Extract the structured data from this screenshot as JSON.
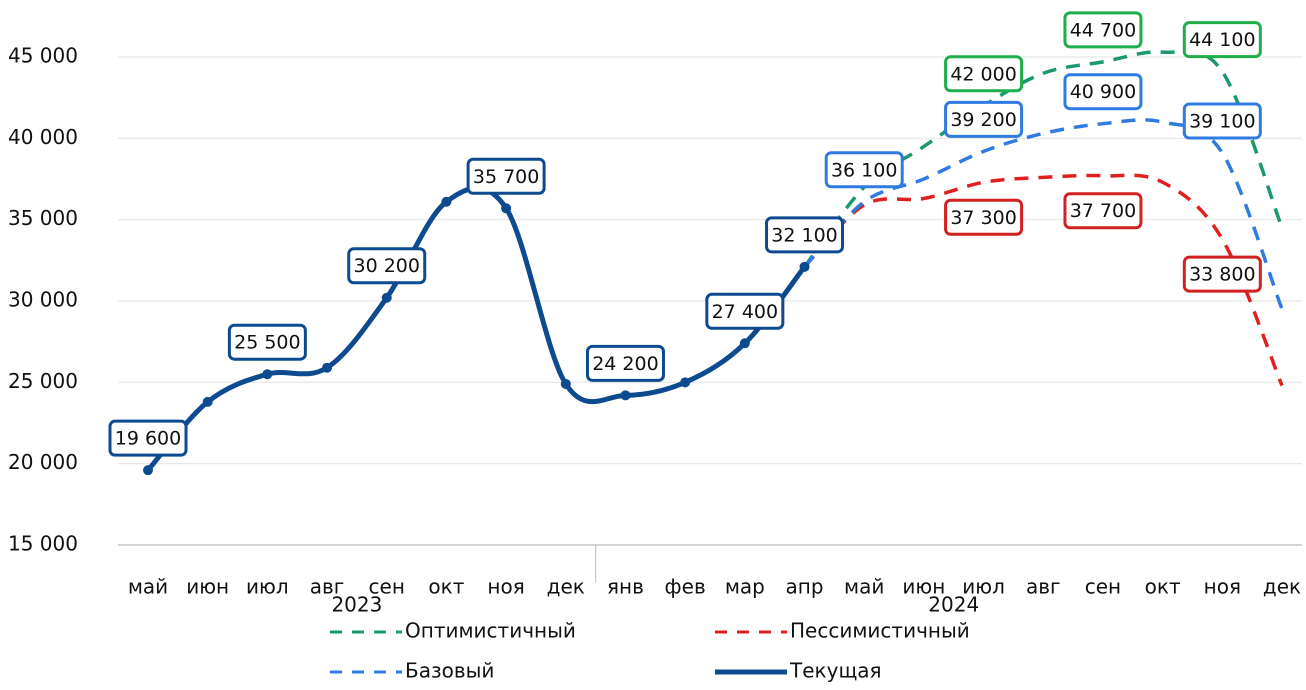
{
  "chart_data": {
    "type": "line",
    "categories": [
      "май",
      "июн",
      "июл",
      "авг",
      "сен",
      "окт",
      "ноя",
      "дек",
      "янв",
      "фев",
      "мар",
      "апр",
      "май",
      "июн",
      "июл",
      "авг",
      "сен",
      "окт",
      "ноя",
      "дек"
    ],
    "groups": [
      {
        "label": "2023",
        "span": 8
      },
      {
        "label": "2024",
        "span": 12
      }
    ],
    "ylim": [
      15000,
      45000
    ],
    "yticks": [
      {
        "value": 15000,
        "label": "15 000"
      },
      {
        "value": 20000,
        "label": "20 000"
      },
      {
        "value": 25000,
        "label": "25 000"
      },
      {
        "value": 30000,
        "label": "30 000"
      },
      {
        "value": 35000,
        "label": "35 000"
      },
      {
        "value": 40000,
        "label": "40 000"
      },
      {
        "value": 45000,
        "label": "45 000"
      }
    ],
    "grid": true,
    "series": [
      {
        "name": "Оптимистичный",
        "color": "#1a9a6c",
        "label_color": "#1fae4a",
        "dashed": true,
        "label_side": "above",
        "values": [
          null,
          null,
          null,
          null,
          null,
          null,
          null,
          null,
          null,
          null,
          null,
          32100,
          37000,
          39500,
          42000,
          44000,
          44700,
          45300,
          44100,
          34500
        ],
        "value_labels": [
          null,
          null,
          null,
          null,
          null,
          null,
          null,
          null,
          null,
          null,
          null,
          null,
          null,
          null,
          "42 000",
          null,
          "44 700",
          null,
          "44 100",
          null
        ]
      },
      {
        "name": "Пессимистичный",
        "color": "#e02020",
        "label_color": "#d32020",
        "dashed": true,
        "label_side": "below",
        "values": [
          null,
          null,
          null,
          null,
          null,
          null,
          null,
          null,
          null,
          null,
          null,
          32100,
          35900,
          36300,
          37300,
          37600,
          37700,
          37300,
          33800,
          24800
        ],
        "value_labels": [
          null,
          null,
          null,
          null,
          null,
          null,
          null,
          null,
          null,
          null,
          null,
          null,
          null,
          null,
          "37 300",
          null,
          "37 700",
          null,
          "33 800",
          null
        ]
      },
      {
        "name": "Базовый",
        "color": "#2f7be0",
        "label_color": "#2f7be0",
        "dashed": true,
        "label_side": "above",
        "values": [
          null,
          null,
          null,
          null,
          null,
          null,
          null,
          null,
          null,
          null,
          null,
          32100,
          36100,
          37500,
          39200,
          40300,
          40900,
          41000,
          39100,
          29500
        ],
        "value_labels": [
          null,
          null,
          null,
          null,
          null,
          null,
          null,
          null,
          null,
          null,
          null,
          null,
          "36 100",
          null,
          "39 200",
          null,
          "40 900",
          null,
          "39 100",
          null
        ]
      },
      {
        "name": "Текущая",
        "color": "#0d4a8f",
        "label_color": "#0d4a8f",
        "dashed": false,
        "markers": true,
        "label_side": "above",
        "values": [
          19600,
          23800,
          25500,
          25900,
          30200,
          36100,
          35700,
          24900,
          24200,
          25000,
          27400,
          32100,
          null,
          null,
          null,
          null,
          null,
          null,
          null,
          null
        ],
        "value_labels": [
          "19 600",
          null,
          "25 500",
          null,
          "30 200",
          null,
          "35 700",
          null,
          "24 200",
          null,
          "27 400",
          "32 100",
          null,
          null,
          null,
          null,
          null,
          null,
          null,
          null
        ]
      }
    ]
  }
}
